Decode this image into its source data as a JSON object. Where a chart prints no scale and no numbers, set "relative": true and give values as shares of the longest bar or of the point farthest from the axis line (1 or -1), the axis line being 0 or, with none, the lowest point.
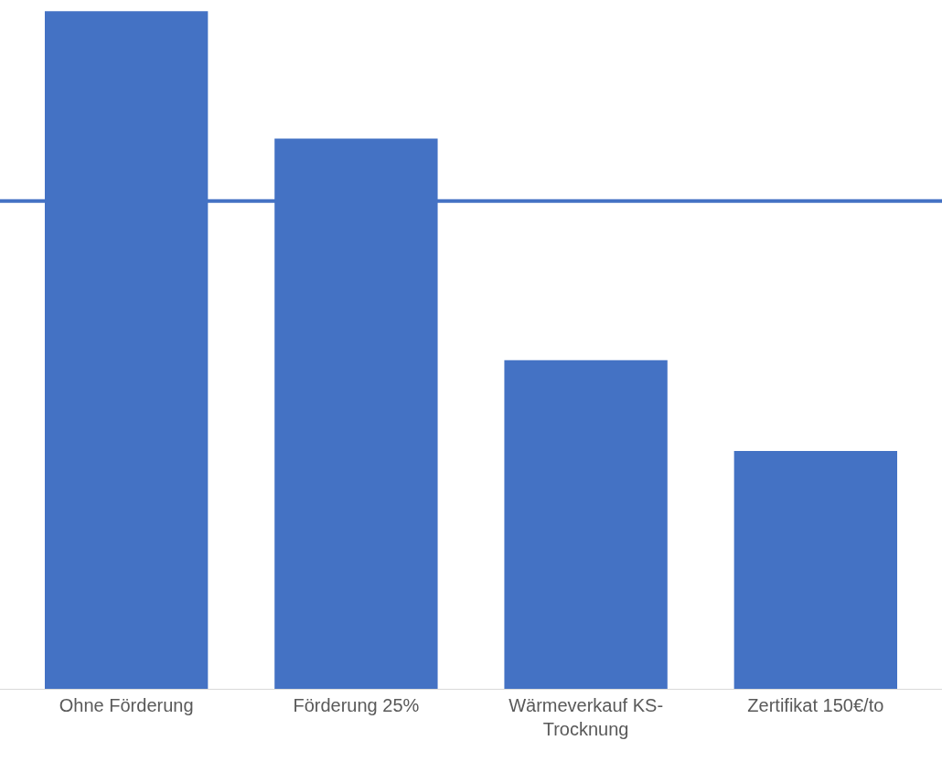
{
  "chart_data": {
    "type": "bar",
    "relative": true,
    "categories": [
      "Ohne Förderung",
      "Förderung 25%",
      "Wärmeverkauf KS-Trocknung",
      "Zertifikat 150€/to"
    ],
    "values": [
      1,
      0.812,
      0.485,
      0.351
    ],
    "color": "#4472c4",
    "ref_lines": [
      {
        "axis": "y",
        "value": 0.72,
        "color": "#4472c4",
        "line_style": "solid"
      }
    ],
    "grid": false
  }
}
